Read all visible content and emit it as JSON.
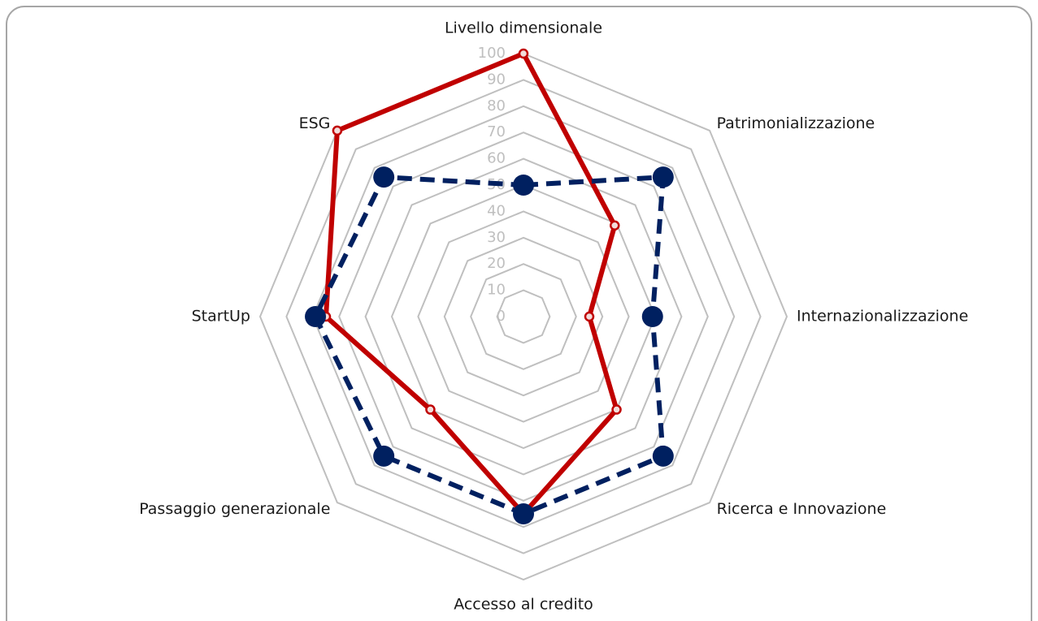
{
  "chart_data": {
    "type": "radar",
    "categories": [
      "Livello dimensionale",
      "Patrimonializzazione",
      "Internazionalizzazione",
      "Ricerca e Innovazione",
      "Accesso al credito",
      "Passaggio generazionale",
      "StartUp",
      "ESG"
    ],
    "series": [
      {
        "color": "#c00000",
        "line": "solid",
        "values": [
          100,
          49,
          25,
          50,
          75,
          50,
          75,
          100
        ]
      },
      {
        "color": "#002060",
        "line": "dashed",
        "values": [
          50,
          75,
          49,
          75,
          75,
          75,
          79,
          75
        ]
      }
    ],
    "ylim": [
      0,
      100
    ],
    "yticks": [
      0,
      10,
      20,
      30,
      40,
      50,
      60,
      70,
      80,
      90,
      100
    ],
    "grid": true
  }
}
